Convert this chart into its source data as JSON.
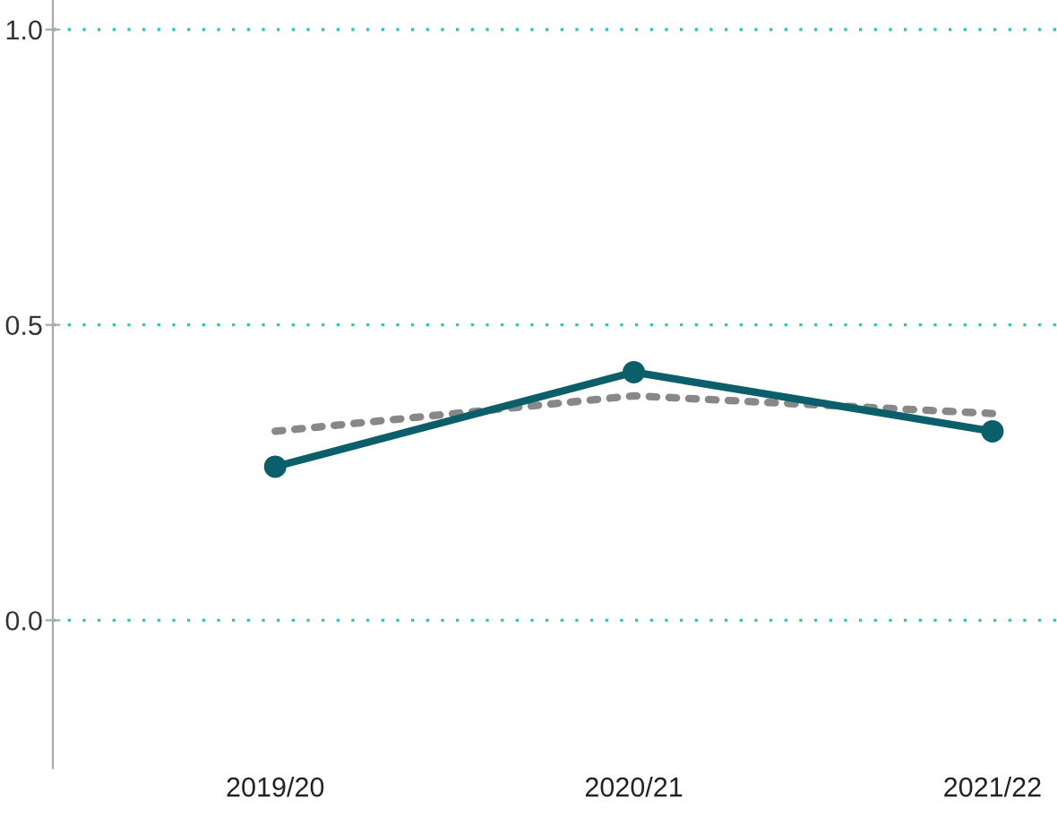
{
  "chart_data": {
    "type": "line",
    "categories": [
      "2019/20",
      "2020/21",
      "2021/22"
    ],
    "series": [
      {
        "color": "#0b5f6b",
        "values": [
          0.26,
          0.42,
          0.32
        ],
        "marker": "circle",
        "line_style": "solid"
      },
      {
        "color": "#888888",
        "values": [
          0.32,
          0.38,
          0.35
        ],
        "marker": "none",
        "line_style": "dotted"
      }
    ],
    "ylim": [
      -0.25,
      1.05
    ],
    "yticks": [
      {
        "value": 0,
        "label": "0.0"
      },
      0.5,
      {
        "value": 1,
        "label": "1.0"
      }
    ],
    "grid": "y"
  }
}
